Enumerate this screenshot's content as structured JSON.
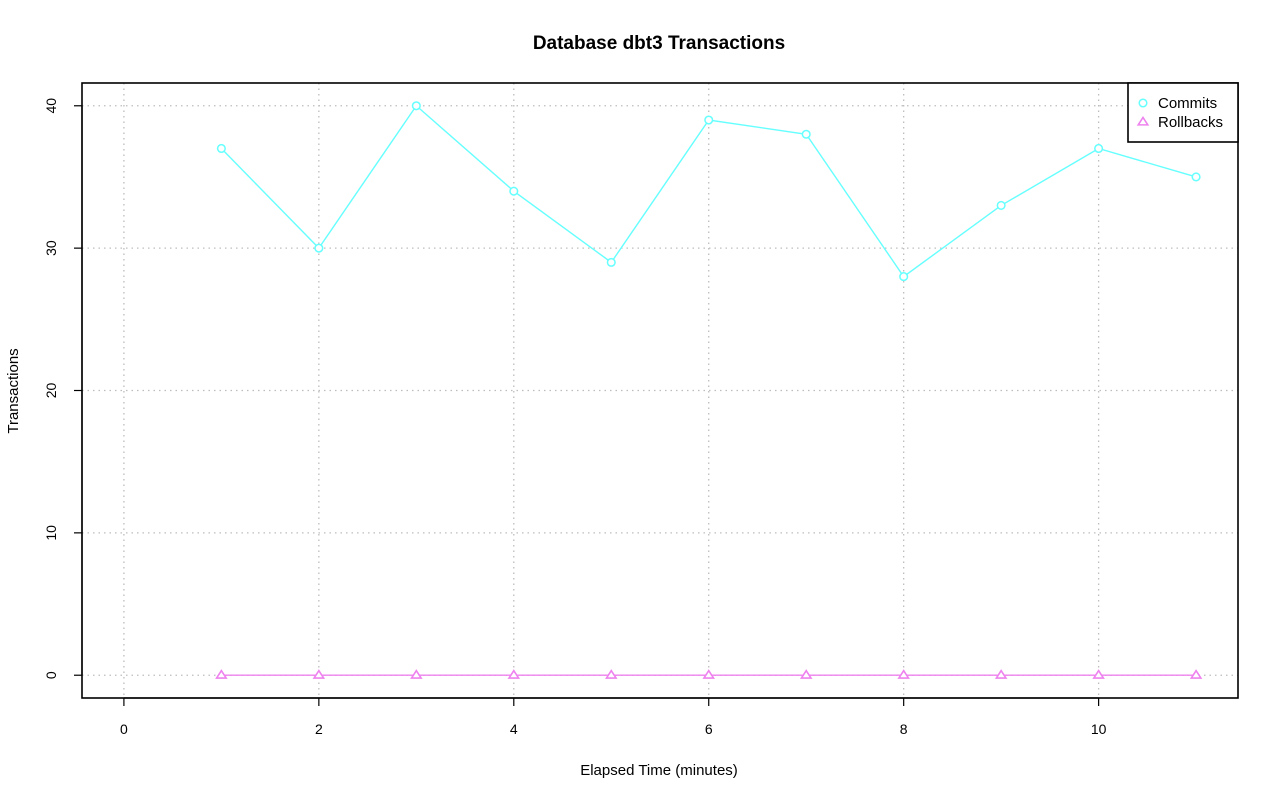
{
  "chart_data": {
    "type": "line",
    "title": "Database dbt3 Transactions",
    "xlabel": "Elapsed Time (minutes)",
    "ylabel": "Transactions",
    "x": [
      1,
      2,
      3,
      4,
      5,
      6,
      7,
      8,
      9,
      10,
      11
    ],
    "xlim": [
      -0.43,
      11.43
    ],
    "ylim": [
      -1.6,
      41.6
    ],
    "xticks": [
      0,
      2,
      4,
      6,
      8,
      10
    ],
    "yticks": [
      0,
      10,
      20,
      30,
      40
    ],
    "grid": true,
    "legend_position": "top-right",
    "series": [
      {
        "name": "Commits",
        "color": "#66ffff",
        "marker": "circle",
        "values": [
          37,
          30,
          40,
          34,
          29,
          39,
          38,
          28,
          33,
          37,
          35
        ]
      },
      {
        "name": "Rollbacks",
        "color": "#ee82ee",
        "marker": "triangle",
        "values": [
          0,
          0,
          0,
          0,
          0,
          0,
          0,
          0,
          0,
          0,
          0
        ]
      }
    ]
  }
}
